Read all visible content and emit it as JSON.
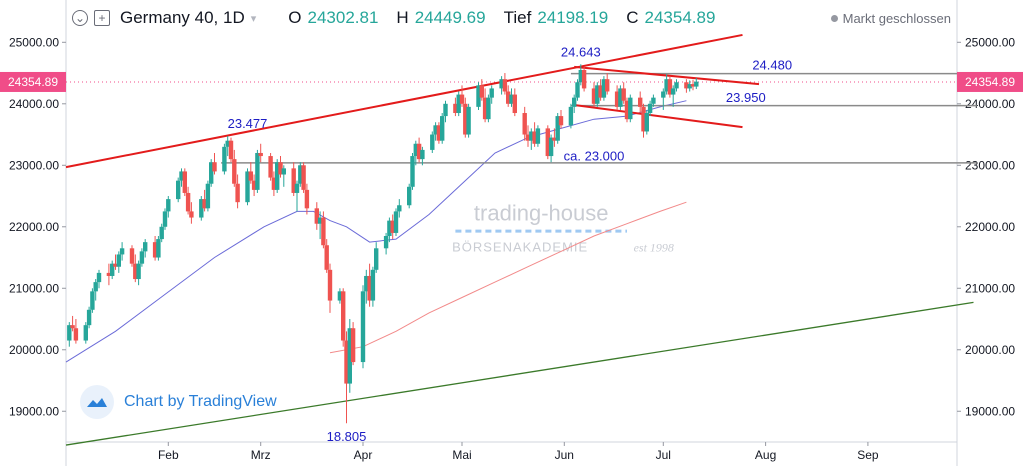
{
  "header": {
    "symbol": "Germany 40, 1D",
    "open_label": "O",
    "open": "24302.81",
    "high_label": "H",
    "high": "24449.69",
    "low_label": "Tief",
    "low": "24198.19",
    "close_label": "C",
    "close": "24354.89",
    "market_status": "Markt geschlossen"
  },
  "watermark": {
    "brand": "trading-house",
    "sub": "BÖRSENAKADEMIE",
    "est": "est 1998",
    "tv": "Chart by TradingView"
  },
  "colors": {
    "up": "#26a69a",
    "down": "#ef5350",
    "trend": "#e31b1b",
    "ma_fast": "#6b6bd8",
    "ma_slow": "#f28a8a",
    "long_trend": "#3b7a2a",
    "hline": "#8a8a8a",
    "price_tag": "#f04d88",
    "annotation": "#1d1dc4"
  },
  "chart_data": {
    "type": "candlestick",
    "y_axis_ticks": [
      "25000.00",
      "24000.00",
      "23000.00",
      "22000.00",
      "21000.00",
      "20000.00",
      "19000.00"
    ],
    "y_ticks": [
      25000,
      24000,
      23000,
      22000,
      21000,
      20000,
      19000
    ],
    "ylim": [
      18500,
      25200
    ],
    "x_ticks": [
      {
        "label": "Feb",
        "day": 31
      },
      {
        "label": "Mrz",
        "day": 59
      },
      {
        "label": "Apr",
        "day": 90
      },
      {
        "label": "Mai",
        "day": 120
      },
      {
        "label": "Jun",
        "day": 151
      },
      {
        "label": "Jul",
        "day": 181
      },
      {
        "label": "Aug",
        "day": 212
      },
      {
        "label": "Sep",
        "day": 243
      }
    ],
    "xlim": [
      0,
      270
    ],
    "current_price": "24354.89",
    "candles": [
      [
        1,
        20150,
        20450,
        20050,
        20400
      ],
      [
        2,
        20400,
        20550,
        20300,
        20350
      ],
      [
        3,
        20350,
        20500,
        20100,
        20150
      ],
      [
        6,
        20150,
        20450,
        20100,
        20400
      ],
      [
        7,
        20400,
        20700,
        20350,
        20650
      ],
      [
        8,
        20650,
        21000,
        20600,
        20950
      ],
      [
        9,
        20950,
        21150,
        20800,
        21100
      ],
      [
        10,
        21100,
        21300,
        21000,
        21250
      ],
      [
        13,
        21250,
        21400,
        21050,
        21200
      ],
      [
        14,
        21200,
        21450,
        21150,
        21400
      ],
      [
        15,
        21400,
        21550,
        21300,
        21350
      ],
      [
        16,
        21350,
        21600,
        21250,
        21550
      ],
      [
        17,
        21550,
        21750,
        21450,
        21650
      ],
      [
        20,
        21650,
        21700,
        21350,
        21400
      ],
      [
        21,
        21400,
        21550,
        21100,
        21150
      ],
      [
        22,
        21150,
        21450,
        21050,
        21400
      ],
      [
        23,
        21400,
        21650,
        21350,
        21600
      ],
      [
        24,
        21600,
        21800,
        21500,
        21750
      ],
      [
        27,
        21750,
        21850,
        21450,
        21500
      ],
      [
        28,
        21500,
        21850,
        21450,
        21800
      ],
      [
        29,
        21800,
        22050,
        21750,
        22000
      ],
      [
        30,
        22000,
        22300,
        21950,
        22250
      ],
      [
        31,
        22250,
        22500,
        22150,
        22450
      ],
      [
        34,
        22450,
        22800,
        22400,
        22750
      ],
      [
        35,
        22750,
        22950,
        22650,
        22900
      ],
      [
        36,
        22900,
        22950,
        22500,
        22550
      ],
      [
        37,
        22550,
        22650,
        22200,
        22250
      ],
      [
        38,
        22250,
        22400,
        22050,
        22150
      ],
      [
        41,
        22150,
        22500,
        22100,
        22450
      ],
      [
        42,
        22450,
        22600,
        22250,
        22300
      ],
      [
        43,
        22300,
        22750,
        22250,
        22700
      ],
      [
        44,
        22700,
        23100,
        22650,
        23050
      ],
      [
        45,
        23050,
        23200,
        22850,
        22900
      ],
      [
        48,
        22900,
        23350,
        22850,
        23300
      ],
      [
        49,
        23300,
        23477,
        23150,
        23400
      ],
      [
        50,
        23400,
        23450,
        23050,
        23100
      ],
      [
        51,
        23100,
        23250,
        22650,
        22700
      ],
      [
        52,
        22700,
        22850,
        22300,
        22400
      ],
      [
        55,
        22400,
        22950,
        22350,
        22900
      ],
      [
        56,
        22900,
        23050,
        22700,
        22750
      ],
      [
        57,
        22750,
        22850,
        22500,
        22600
      ],
      [
        58,
        22600,
        23250,
        22550,
        23200
      ],
      [
        59,
        23200,
        23350,
        23050,
        23150
      ],
      [
        62,
        23150,
        23200,
        22750,
        22800
      ],
      [
        63,
        22800,
        22900,
        22500,
        22600
      ],
      [
        64,
        22600,
        23100,
        22550,
        23050
      ],
      [
        65,
        23050,
        23150,
        22800,
        22850
      ],
      [
        66,
        22850,
        23000,
        22650,
        22950
      ],
      [
        69,
        22950,
        23050,
        22500,
        22550
      ],
      [
        70,
        22550,
        22750,
        22250,
        22700
      ],
      [
        71,
        22700,
        23050,
        22650,
        23000
      ],
      [
        72,
        23000,
        23050,
        22550,
        22600
      ],
      [
        73,
        22600,
        22700,
        22200,
        22300
      ],
      [
        76,
        22300,
        22400,
        21950,
        22050
      ],
      [
        77,
        22050,
        22250,
        21800,
        22150
      ],
      [
        78,
        22150,
        22250,
        21650,
        21700
      ],
      [
        79,
        21700,
        21800,
        21250,
        21300
      ],
      [
        80,
        21300,
        21400,
        20600,
        20800
      ],
      [
        83,
        20800,
        21000,
        20750,
        20950
      ],
      [
        84,
        20950,
        21000,
        20050,
        20150
      ],
      [
        85,
        20150,
        20300,
        18805,
        19450
      ],
      [
        86,
        19450,
        20500,
        19300,
        20350
      ],
      [
        87,
        20350,
        20450,
        19750,
        19800
      ],
      [
        90,
        19800,
        21050,
        19700,
        20950
      ],
      [
        91,
        20950,
        21300,
        20750,
        21200
      ],
      [
        92,
        21200,
        21400,
        20700,
        20800
      ],
      [
        93,
        20800,
        21350,
        20700,
        21300
      ],
      [
        94,
        21300,
        21750,
        21250,
        21650
      ],
      [
        97,
        21650,
        21900,
        21550,
        21850
      ],
      [
        98,
        21850,
        22150,
        21750,
        22100
      ],
      [
        99,
        22100,
        22200,
        21800,
        21900
      ],
      [
        100,
        21900,
        22300,
        21850,
        22250
      ],
      [
        101,
        22250,
        22450,
        22150,
        22350
      ],
      [
        104,
        22350,
        22700,
        22300,
        22650
      ],
      [
        105,
        22650,
        23200,
        22600,
        23150
      ],
      [
        106,
        23150,
        23400,
        23000,
        23350
      ],
      [
        107,
        23350,
        23450,
        23050,
        23100
      ],
      [
        108,
        23100,
        23300,
        23000,
        23250
      ],
      [
        111,
        23250,
        23550,
        23200,
        23500
      ],
      [
        112,
        23500,
        23700,
        23400,
        23650
      ],
      [
        113,
        23650,
        23700,
        23350,
        23400
      ],
      [
        114,
        23400,
        23850,
        23350,
        23800
      ],
      [
        115,
        23800,
        24050,
        23700,
        24000
      ],
      [
        118,
        24000,
        24100,
        23800,
        23850
      ],
      [
        119,
        23850,
        24200,
        23800,
        24150
      ],
      [
        120,
        24150,
        24300,
        23950,
        24000
      ],
      [
        121,
        24000,
        24100,
        23450,
        23500
      ],
      [
        122,
        23500,
        24000,
        23450,
        23950
      ],
      [
        125,
        23950,
        24350,
        23900,
        24300
      ],
      [
        126,
        24300,
        24400,
        24050,
        24100
      ],
      [
        127,
        24100,
        24250,
        23700,
        23750
      ],
      [
        128,
        23750,
        24150,
        23700,
        24100
      ],
      [
        129,
        24100,
        24300,
        24000,
        24250
      ],
      [
        132,
        24250,
        24450,
        24150,
        24400
      ],
      [
        133,
        24400,
        24500,
        24150,
        24200
      ],
      [
        134,
        24200,
        24300,
        23950,
        24000
      ],
      [
        135,
        24000,
        24250,
        23950,
        24150
      ],
      [
        136,
        24150,
        24250,
        23800,
        23850
      ],
      [
        139,
        23850,
        23950,
        23400,
        23500
      ],
      [
        140,
        23500,
        23650,
        23300,
        23400
      ],
      [
        141,
        23400,
        23600,
        23250,
        23550
      ],
      [
        142,
        23550,
        23700,
        23300,
        23350
      ],
      [
        143,
        23350,
        23650,
        23300,
        23600
      ],
      [
        146,
        23600,
        23650,
        23100,
        23150
      ],
      [
        147,
        23150,
        23500,
        23050,
        23450
      ],
      [
        148,
        23450,
        23600,
        23300,
        23400
      ],
      [
        149,
        23400,
        23850,
        23350,
        23800
      ],
      [
        150,
        23800,
        23900,
        23600,
        23650
      ],
      [
        153,
        23650,
        24000,
        23600,
        23950
      ],
      [
        154,
        23950,
        24150,
        23850,
        24100
      ],
      [
        155,
        24100,
        24400,
        24050,
        24350
      ],
      [
        156,
        24350,
        24643,
        24300,
        24550
      ],
      [
        157,
        24550,
        24600,
        24200,
        24250
      ],
      [
        160,
        24250,
        24350,
        23950,
        24000
      ],
      [
        161,
        24000,
        24350,
        23950,
        24300
      ],
      [
        162,
        24300,
        24400,
        24050,
        24100
      ],
      [
        163,
        24100,
        24450,
        24050,
        24400
      ],
      [
        164,
        24400,
        24500,
        24150,
        24200
      ],
      [
        167,
        24200,
        24300,
        23900,
        23950
      ],
      [
        168,
        23950,
        24300,
        23900,
        24250
      ],
      [
        169,
        24250,
        24350,
        24000,
        24050
      ],
      [
        170,
        24050,
        24100,
        23700,
        23750
      ],
      [
        171,
        23750,
        24150,
        23700,
        24100
      ],
      [
        174,
        24100,
        24200,
        23850,
        23950
      ],
      [
        175,
        23950,
        24000,
        23450,
        23550
      ],
      [
        176,
        23550,
        23900,
        23500,
        23850
      ],
      [
        177,
        23850,
        24050,
        23800,
        24000
      ],
      [
        178,
        24000,
        24150,
        23950,
        24100
      ],
      [
        181,
        24100,
        24250,
        23900,
        24200
      ],
      [
        182,
        24200,
        24480,
        24150,
        24400
      ],
      [
        183,
        24400,
        24450,
        24100,
        24150
      ],
      [
        184,
        24150,
        24300,
        23950,
        24250
      ],
      [
        185,
        24250,
        24400,
        24200,
        24350
      ],
      [
        188,
        24350,
        24400,
        24180,
        24250
      ],
      [
        189,
        24250,
        24380,
        24200,
        24320
      ],
      [
        190,
        24320,
        24390,
        24220,
        24280
      ],
      [
        191,
        24280,
        24420,
        24240,
        24360
      ]
    ],
    "annotations": [
      {
        "text": "23.477",
        "day": 55,
        "value": 23477,
        "pos": "above"
      },
      {
        "text": "18.805",
        "day": 85,
        "value": 18805,
        "pos": "below"
      },
      {
        "text": "24.643",
        "day": 156,
        "value": 24643,
        "pos": "above"
      },
      {
        "text": "24.480",
        "day": 214,
        "value": 24480,
        "pos": "line"
      },
      {
        "text": "23.950",
        "day": 206,
        "value": 23950,
        "pos": "line"
      },
      {
        "text": "ca. 23.000",
        "day": 160,
        "value": 23000,
        "pos": "line"
      }
    ],
    "hlines": [
      {
        "from": 47,
        "to": 276,
        "value": 23040
      },
      {
        "from": 153,
        "to": 276,
        "value": 24490
      },
      {
        "from": 153,
        "to": 276,
        "value": 23970
      }
    ],
    "trendlines": [
      {
        "p1": [
          0,
          22970
        ],
        "p2": [
          205,
          25120
        ],
        "color": "trend"
      },
      {
        "p1": [
          154,
          24600
        ],
        "p2": [
          210,
          24320
        ],
        "color": "trend"
      },
      {
        "p1": [
          154,
          23980
        ],
        "p2": [
          205,
          23620
        ],
        "color": "trend"
      },
      {
        "p1": [
          0,
          18450
        ],
        "p2": [
          275,
          20770
        ],
        "color": "long_trend"
      }
    ],
    "ma_fast": [
      [
        0,
        19800
      ],
      [
        15,
        20300
      ],
      [
        30,
        20900
      ],
      [
        45,
        21500
      ],
      [
        60,
        22000
      ],
      [
        70,
        22250
      ],
      [
        75,
        22250
      ],
      [
        80,
        22100
      ],
      [
        85,
        22000
      ],
      [
        92,
        21750
      ],
      [
        100,
        21800
      ],
      [
        110,
        22200
      ],
      [
        120,
        22700
      ],
      [
        130,
        23200
      ],
      [
        140,
        23450
      ],
      [
        150,
        23600
      ],
      [
        160,
        23750
      ],
      [
        170,
        23800
      ],
      [
        180,
        23950
      ],
      [
        188,
        24050
      ]
    ],
    "ma_slow": [
      [
        80,
        19950
      ],
      [
        90,
        20050
      ],
      [
        100,
        20300
      ],
      [
        110,
        20600
      ],
      [
        120,
        20850
      ],
      [
        130,
        21100
      ],
      [
        140,
        21350
      ],
      [
        150,
        21600
      ],
      [
        160,
        21850
      ],
      [
        170,
        22050
      ],
      [
        180,
        22250
      ],
      [
        188,
        22400
      ]
    ]
  }
}
